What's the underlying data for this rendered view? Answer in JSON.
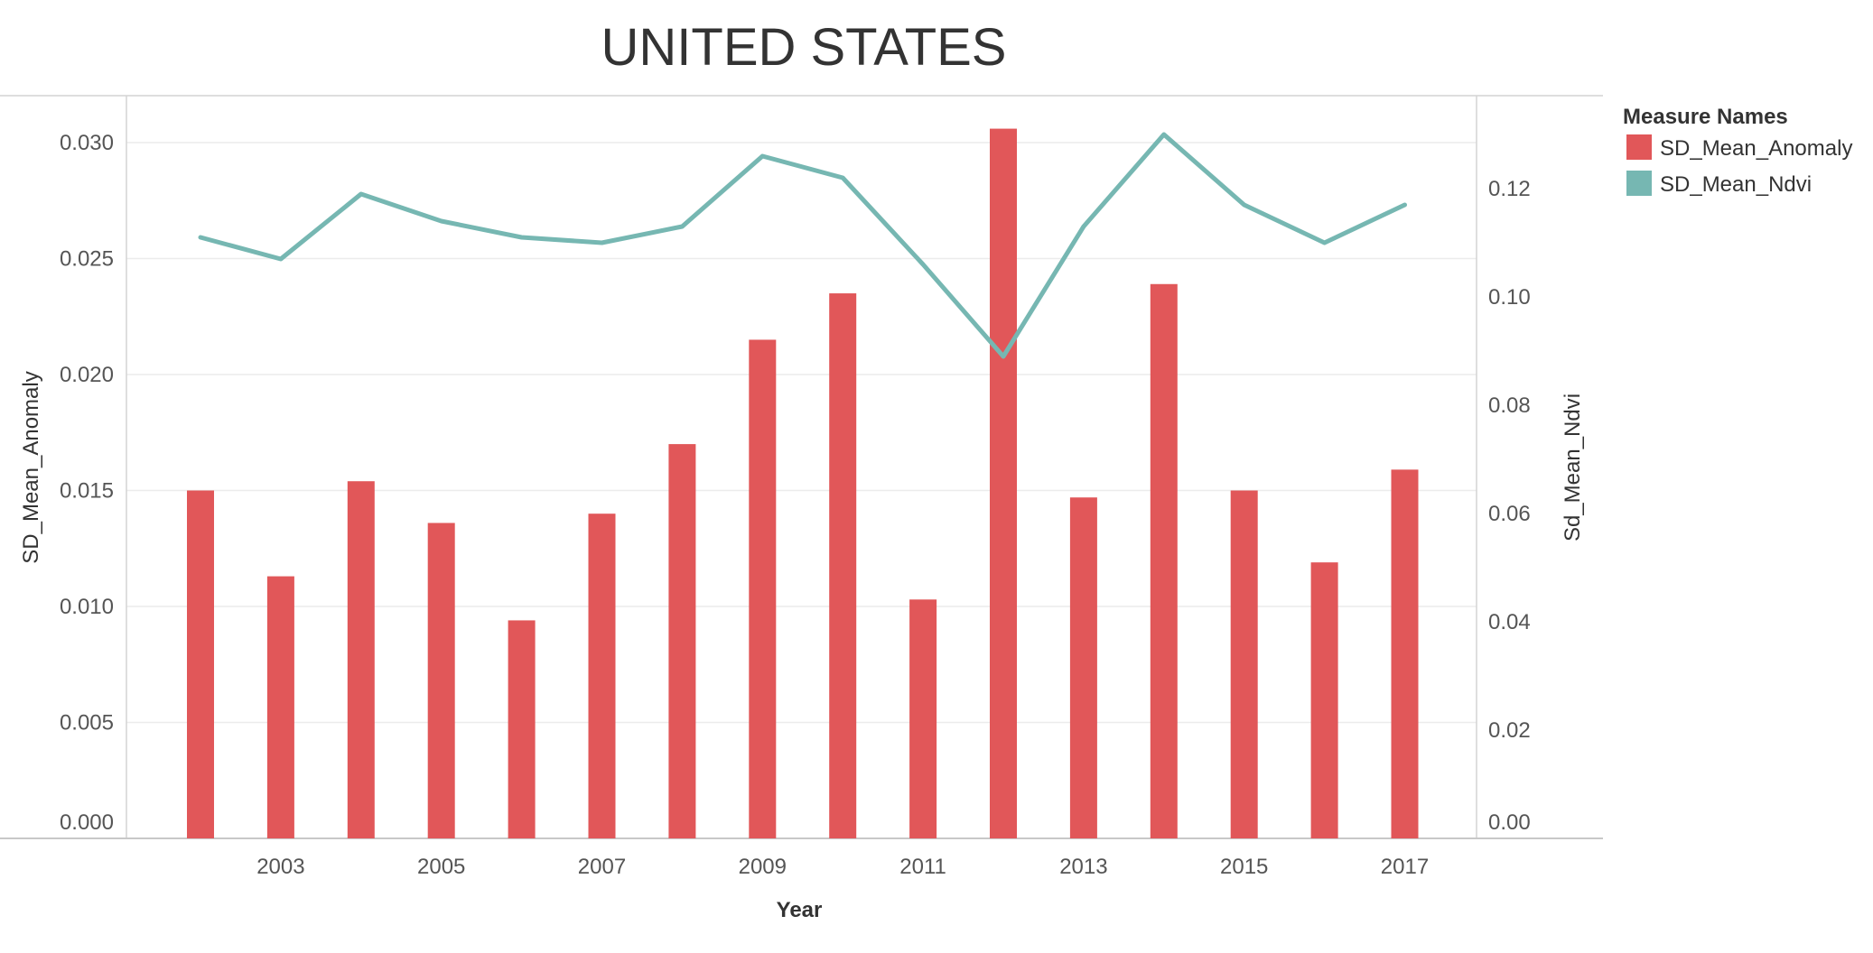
{
  "chart_data": {
    "type": "bar",
    "title": "UNITED STATES",
    "xlabel": "Year",
    "ylabel_left": "SD_Mean_Anomaly",
    "ylabel_right": "Sd_Mean_Ndvi",
    "x": [
      2002,
      2003,
      2004,
      2005,
      2006,
      2007,
      2008,
      2009,
      2010,
      2011,
      2012,
      2013,
      2014,
      2015,
      2016,
      2017
    ],
    "x_tick_labels": [
      "2003",
      "2005",
      "2007",
      "2009",
      "2011",
      "2013",
      "2015",
      "2017"
    ],
    "y_left_ticks": [
      "0.000",
      "0.005",
      "0.010",
      "0.015",
      "0.020",
      "0.025",
      "0.030"
    ],
    "y_right_ticks": [
      "0.00",
      "0.02",
      "0.04",
      "0.06",
      "0.08",
      "0.10",
      "0.12"
    ],
    "ylim_left": [
      0,
      0.0315
    ],
    "ylim_right": [
      0,
      0.136
    ],
    "grid": true,
    "legend_title": "Measure Names",
    "legend_position": "top-right",
    "series": [
      {
        "name": "SD_Mean_Anomaly",
        "type": "bar",
        "axis": "left",
        "color": "#e15759",
        "values": [
          0.015,
          0.0113,
          0.0154,
          0.0136,
          0.0094,
          0.014,
          0.017,
          0.0215,
          0.0235,
          0.0103,
          0.0306,
          0.0147,
          0.0239,
          0.015,
          0.0119,
          0.0159
        ]
      },
      {
        "name": "SD_Mean_Ndvi",
        "type": "line",
        "axis": "right",
        "color": "#76b7b2",
        "values": [
          0.111,
          0.107,
          0.119,
          0.114,
          0.111,
          0.11,
          0.113,
          0.126,
          0.122,
          0.106,
          0.089,
          0.113,
          0.13,
          0.117,
          0.11,
          0.117
        ]
      }
    ]
  }
}
